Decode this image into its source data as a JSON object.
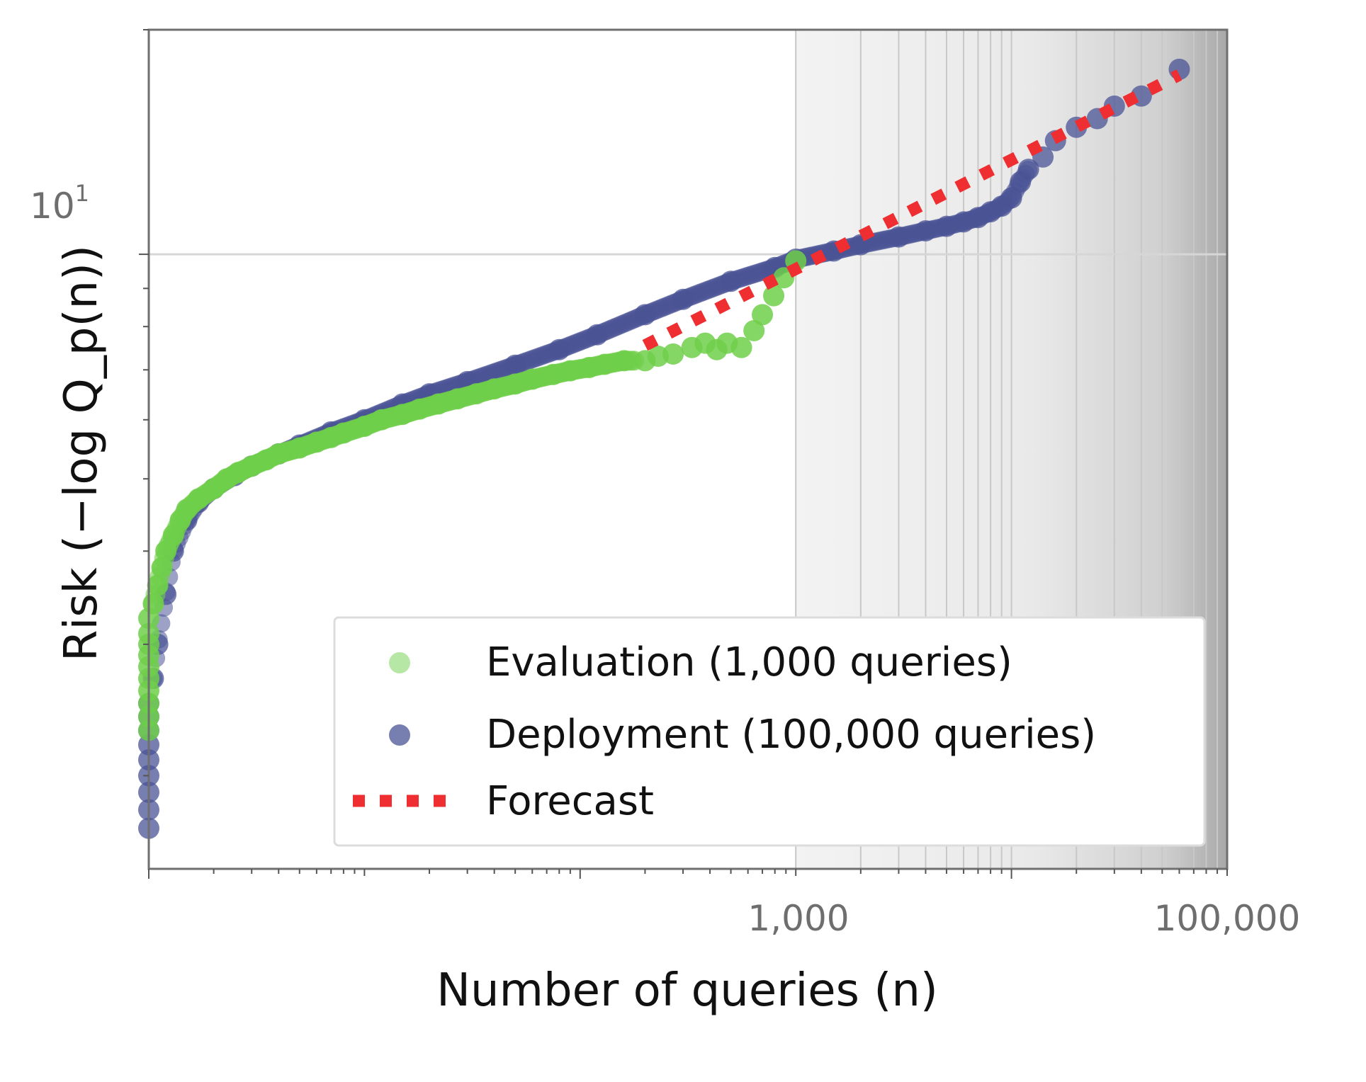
{
  "chart_data": {
    "type": "scatter",
    "title": "",
    "xlabel": "Number of queries (n)",
    "ylabel": "Risk (−log Q_p(n))",
    "x_scale": "log",
    "y_scale": "log",
    "xlim": [
      1,
      100000
    ],
    "ylim": [
      1.5,
      20
    ],
    "x_tick_labels": [
      {
        "value": 1000,
        "label": "1,000"
      },
      {
        "value": 100000,
        "label": "100,000"
      }
    ],
    "y_tick_labels": [
      {
        "value": 10,
        "label": "10",
        "exponent": "1"
      }
    ],
    "shaded_region": {
      "x_from": 1000,
      "x_to": 100000,
      "description": "deployment range"
    },
    "legend_location": "lower right",
    "grid": "horizontal major gridline; vertical gridlines in shaded region",
    "series": [
      {
        "name": "Evaluation (1,000 queries)",
        "kind": "points",
        "color": "#6fcf4a",
        "x": [
          1,
          1,
          1,
          1,
          1,
          1,
          1,
          1,
          1,
          1,
          1.05,
          1.1,
          1.15,
          1.2,
          1.3,
          1.4,
          1.5,
          1.7,
          2,
          2.3,
          2.6,
          3,
          3.5,
          4,
          5,
          6,
          7,
          8,
          10,
          12,
          15,
          18,
          22,
          27,
          33,
          40,
          50,
          60,
          75,
          90,
          110,
          130,
          160,
          200,
          230,
          270,
          330,
          380,
          430,
          480,
          560,
          640,
          700,
          790,
          880,
          1000
        ],
        "y": [
          2.3,
          2.4,
          2.5,
          2.6,
          2.7,
          2.8,
          2.9,
          3.0,
          3.1,
          3.25,
          3.4,
          3.6,
          3.8,
          4.0,
          4.2,
          4.4,
          4.55,
          4.7,
          4.85,
          5.0,
          5.1,
          5.2,
          5.3,
          5.4,
          5.5,
          5.6,
          5.68,
          5.76,
          5.88,
          6.0,
          6.1,
          6.2,
          6.3,
          6.4,
          6.5,
          6.6,
          6.7,
          6.8,
          6.9,
          6.98,
          7.05,
          7.12,
          7.2,
          7.2,
          7.3,
          7.35,
          7.5,
          7.6,
          7.45,
          7.6,
          7.5,
          7.9,
          8.3,
          8.8,
          9.3,
          9.8
        ]
      },
      {
        "name": "Deployment (100,000 queries)",
        "kind": "points",
        "color": "#4a5396",
        "x": [
          1,
          1,
          1,
          1,
          1,
          1,
          1,
          1,
          1,
          1.05,
          1.1,
          1.2,
          1.3,
          1.5,
          1.7,
          2,
          2.5,
          3,
          4,
          5,
          7,
          10,
          15,
          20,
          30,
          50,
          80,
          120,
          200,
          300,
          500,
          800,
          1000,
          1500,
          2000,
          3000,
          4000,
          5000,
          6000,
          7000,
          8000,
          9000,
          10000,
          11000,
          12000,
          14000,
          16000,
          20000,
          25000,
          30000,
          40000,
          60000
        ],
        "y": [
          1.7,
          1.8,
          1.9,
          2.0,
          2.1,
          2.2,
          2.3,
          2.4,
          2.5,
          2.7,
          3.0,
          3.5,
          4.0,
          4.4,
          4.65,
          4.85,
          5.05,
          5.2,
          5.4,
          5.55,
          5.78,
          6.0,
          6.3,
          6.5,
          6.75,
          7.1,
          7.45,
          7.8,
          8.3,
          8.7,
          9.2,
          9.6,
          9.85,
          10.1,
          10.3,
          10.55,
          10.75,
          10.9,
          11.05,
          11.2,
          11.4,
          11.6,
          11.9,
          12.5,
          13.0,
          13.5,
          14.2,
          14.8,
          15.2,
          15.8,
          16.3,
          17.7
        ]
      },
      {
        "name": "Forecast",
        "kind": "dotted-line",
        "color": "#ee2e31",
        "x": [
          200,
          60000
        ],
        "y": [
          7.55,
          17.4
        ]
      }
    ]
  }
}
